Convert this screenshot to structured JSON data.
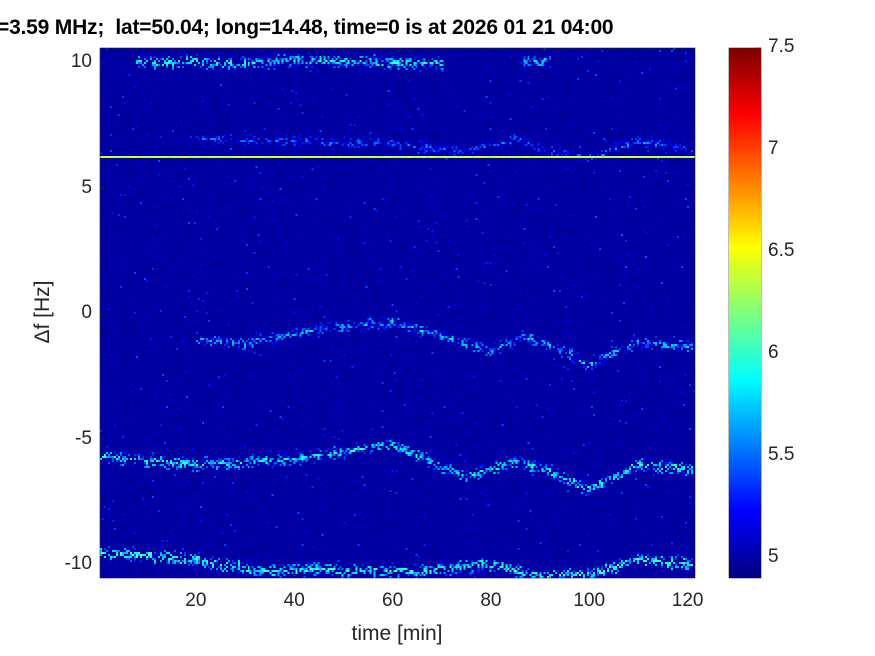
{
  "chart_data": {
    "type": "heatmap",
    "title": "=3.59 MHz;  lat=50.04; long=14.48, time=0 is at 2026 01 21 04:00",
    "xlabel": "time [min]",
    "ylabel": "Δf [Hz]",
    "xlim": [
      0.5,
      121.5
    ],
    "ylim": [
      -10.5,
      10.6
    ],
    "xticks": [
      20,
      40,
      60,
      80,
      100,
      120
    ],
    "yticks": [
      -10,
      -5,
      0,
      5,
      10
    ],
    "colorbar": {
      "range": [
        4.9,
        7.5
      ],
      "ticks": [
        5,
        5.5,
        6,
        6.5,
        7,
        7.5
      ],
      "colormap": "jet"
    },
    "background_level": 4.95,
    "features": [
      {
        "kind": "constant-line",
        "df": 6.3,
        "t": [
          0.5,
          121.5
        ],
        "level": 6.4
      },
      {
        "kind": "trace",
        "level": 5.8,
        "points": [
          [
            8,
            10.1
          ],
          [
            15,
            10.0
          ],
          [
            18,
            10.2
          ],
          [
            22,
            10.0
          ],
          [
            30,
            10.05
          ],
          [
            40,
            10.1
          ],
          [
            50,
            10.15
          ],
          [
            60,
            10.05
          ],
          [
            70,
            10.0
          ]
        ]
      },
      {
        "kind": "trace",
        "level": 5.7,
        "points": [
          [
            86,
            10.1
          ],
          [
            92,
            10.1
          ]
        ]
      },
      {
        "kind": "trace",
        "level": 5.4,
        "points": [
          [
            20,
            7.0
          ],
          [
            40,
            6.9
          ],
          [
            60,
            6.8
          ],
          [
            75,
            6.5
          ],
          [
            85,
            7.0
          ],
          [
            92,
            6.5
          ],
          [
            100,
            6.2
          ],
          [
            110,
            6.9
          ],
          [
            121,
            6.6
          ]
        ]
      },
      {
        "kind": "trace",
        "level": 5.6,
        "points": [
          [
            20,
            -1.0
          ],
          [
            30,
            -1.2
          ],
          [
            45,
            -0.6
          ],
          [
            60,
            -0.3
          ],
          [
            70,
            -0.9
          ],
          [
            80,
            -1.5
          ],
          [
            86,
            -0.9
          ],
          [
            92,
            -1.2
          ],
          [
            100,
            -2.0
          ],
          [
            110,
            -1.1
          ],
          [
            121,
            -1.3
          ]
        ]
      },
      {
        "kind": "trace",
        "level": 5.8,
        "points": [
          [
            0.5,
            -5.7
          ],
          [
            20,
            -6.0
          ],
          [
            40,
            -5.8
          ],
          [
            60,
            -5.2
          ],
          [
            75,
            -6.5
          ],
          [
            85,
            -5.9
          ],
          [
            92,
            -6.3
          ],
          [
            100,
            -7.0
          ],
          [
            110,
            -6.0
          ],
          [
            121,
            -6.2
          ]
        ]
      },
      {
        "kind": "trace",
        "level": 5.9,
        "points": [
          [
            0.5,
            -9.5
          ],
          [
            20,
            -9.8
          ],
          [
            33,
            -10.3
          ],
          [
            45,
            -10.2
          ],
          [
            65,
            -10.3
          ],
          [
            80,
            -10.0
          ],
          [
            90,
            -10.5
          ],
          [
            100,
            -10.4
          ],
          [
            110,
            -9.8
          ],
          [
            121,
            -10.0
          ]
        ]
      }
    ]
  }
}
